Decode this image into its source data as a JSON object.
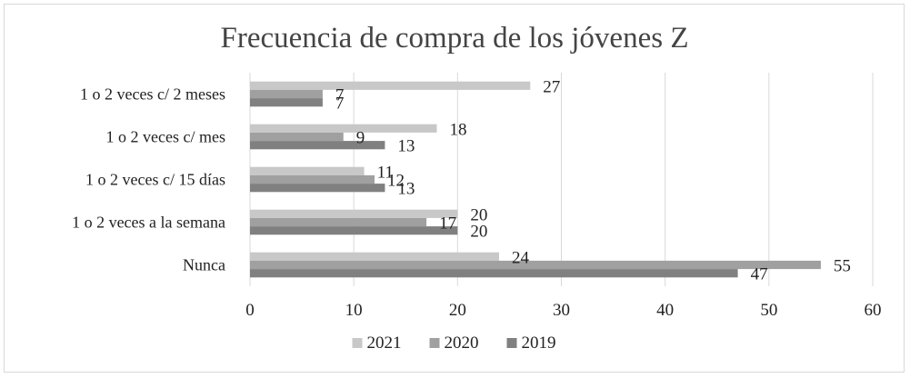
{
  "chart_data": {
    "type": "bar",
    "orientation": "horizontal",
    "title": "Frecuencia de compra de los jóvenes Z",
    "xlabel": "",
    "ylabel": "",
    "categories": [
      "1 o 2 veces c/ 2 meses",
      "1 o 2 veces c/ mes",
      "1 o 2 veces c/ 15 días",
      "1 o 2 veces a la semana",
      "Nunca"
    ],
    "series": [
      {
        "name": "2021",
        "color": "#c8c8c8",
        "values": [
          27,
          18,
          11,
          20,
          24
        ]
      },
      {
        "name": "2020",
        "color": "#a0a0a0",
        "values": [
          7,
          9,
          12,
          17,
          55
        ]
      },
      {
        "name": "2019",
        "color": "#808080",
        "values": [
          7,
          13,
          13,
          20,
          47
        ]
      }
    ],
    "xlim": [
      0,
      60
    ],
    "xticks": [
      0,
      10,
      20,
      30,
      40,
      50,
      60
    ],
    "grid": true,
    "legend_position": "bottom"
  }
}
